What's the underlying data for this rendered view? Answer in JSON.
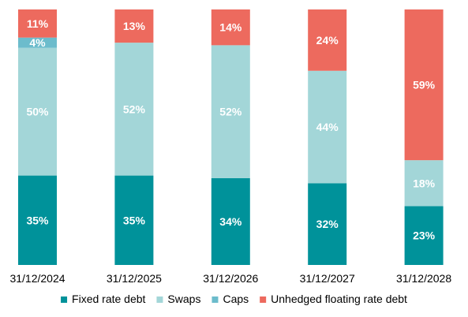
{
  "chart_data": {
    "type": "bar",
    "stacked": true,
    "categories": [
      "31/12/2024",
      "31/12/2025",
      "31/12/2026",
      "31/12/2027",
      "31/12/2028"
    ],
    "series": [
      {
        "name": "Fixed rate debt",
        "color": "#00929a",
        "values": [
          35,
          35,
          34,
          32,
          23
        ],
        "labels": [
          "35%",
          "35%",
          "34%",
          "32%",
          "23%"
        ]
      },
      {
        "name": "Swaps",
        "color": "#a3d6d8",
        "values": [
          50,
          52,
          52,
          44,
          18
        ],
        "labels": [
          "50%",
          "52%",
          "52%",
          "44%",
          "18%"
        ]
      },
      {
        "name": "Caps",
        "color": "#6cbccc",
        "values": [
          4,
          0,
          0,
          0,
          0
        ],
        "labels": [
          "4%",
          "",
          "",
          "",
          ""
        ]
      },
      {
        "name": "Unhedged floating rate debt",
        "color": "#ed6a5e",
        "values": [
          11,
          13,
          14,
          24,
          59
        ],
        "labels": [
          "11%",
          "13%",
          "14%",
          "24%",
          "59%"
        ]
      }
    ],
    "ylim": [
      0,
      100
    ],
    "grid": false,
    "legend_position": "bottom",
    "title": "",
    "xlabel": "",
    "ylabel": ""
  }
}
